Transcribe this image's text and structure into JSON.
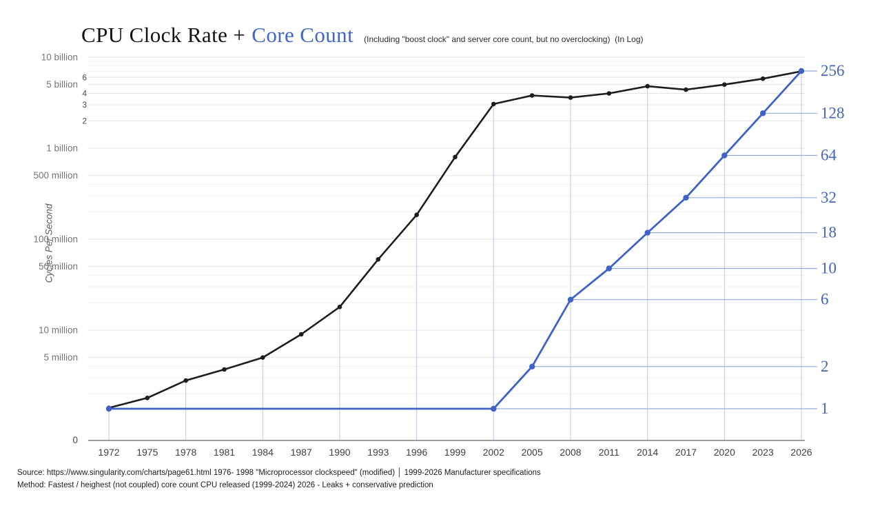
{
  "header": {
    "title_black": "CPU Clock Rate +",
    "title_blue": "Core Count",
    "subtitle": "(Including \"boost clock\" and server core count, but no overclocking)  (In Log)"
  },
  "footer": {
    "source_line": "Source: https://www.singularity.com/charts/page61.html 1976- 1998 \"Microprocessor clockspeed\" (modified) │ 1999-2026 Manufacturer specifications",
    "method_line": "Method: Fastest / heighest (not coupled) core count CPU released (1999-2024)  2026 - Leaks + conservative prediction"
  },
  "chart_data": {
    "type": "line",
    "title": "CPU Clock Rate + Core Count",
    "x_years": [
      1972,
      1975,
      1978,
      1981,
      1984,
      1987,
      1990,
      1993,
      1996,
      1999,
      2002,
      2005,
      2008,
      2011,
      2014,
      2017,
      2020,
      2023,
      2026
    ],
    "series": [
      {
        "name": "CPU Clock Rate",
        "axis": "left",
        "unit": "cycles per second (Hz)",
        "color": "#1d1d1d",
        "values": [
          1400000,
          1800000,
          2800000,
          3700000,
          5000000,
          9000000,
          18000000,
          60000000,
          185000000,
          800000000,
          3060000000,
          3800000000,
          3600000000,
          4000000000,
          4800000000,
          4400000000,
          5000000000,
          5800000000,
          7000000000
        ]
      },
      {
        "name": "Core Count",
        "axis": "right",
        "unit": "cores",
        "color": "#3e63c4",
        "values": [
          1,
          1,
          1,
          1,
          1,
          1,
          1,
          1,
          1,
          1,
          1,
          2,
          6,
          10,
          18,
          32,
          64,
          128,
          256
        ],
        "marker_years": [
          1972,
          2002,
          2005,
          2008,
          2011,
          2014,
          2017,
          2020,
          2023,
          2026
        ]
      }
    ],
    "left_axis": {
      "title": "Cycles Per Second",
      "scale": "log10",
      "zero_label": "0",
      "ticks": [
        {
          "label": "10 billion",
          "value": 10000000000
        },
        {
          "label": "5 billion",
          "value": 5000000000
        },
        {
          "label": "1 billion",
          "value": 1000000000
        },
        {
          "label": "500 million",
          "value": 500000000
        },
        {
          "label": "100 million",
          "value": 100000000
        },
        {
          "label": "50 million",
          "value": 50000000
        },
        {
          "label": "10 million",
          "value": 10000000
        },
        {
          "label": "5 million",
          "value": 5000000
        }
      ],
      "small_ticks": [
        {
          "label": "6",
          "value": 6000000000
        },
        {
          "label": "4",
          "value": 4000000000
        },
        {
          "label": "3",
          "value": 3000000000
        },
        {
          "label": "2",
          "value": 2000000000
        }
      ]
    },
    "right_axis": {
      "scale": "log2",
      "ticks": [
        {
          "label": "256",
          "value": 256,
          "year": 2026
        },
        {
          "label": "128",
          "value": 128,
          "year": 2023
        },
        {
          "label": "64",
          "value": 64,
          "year": 2020
        },
        {
          "label": "32",
          "value": 32,
          "year": 2017
        },
        {
          "label": "18",
          "value": 18,
          "year": 2014
        },
        {
          "label": "10",
          "value": 10,
          "year": 2011
        },
        {
          "label": "6",
          "value": 6,
          "year": 2008
        },
        {
          "label": "2",
          "value": 2,
          "year": 2005
        },
        {
          "label": "1",
          "value": 1,
          "year": 1972
        }
      ]
    },
    "dropline_years": [
      1972,
      1978,
      1984,
      1990,
      1996,
      2002,
      2008,
      2014,
      2020,
      2026
    ],
    "grid": {
      "major_values": [
        10000000000,
        6000000000,
        5000000000,
        4000000000,
        3000000000,
        2000000000,
        1000000000,
        500000000,
        100000000,
        50000000,
        10000000,
        5000000
      ],
      "minor_values": [
        9000000000,
        8000000000,
        7000000000,
        400000000,
        300000000,
        200000000,
        40000000,
        30000000,
        20000000,
        4000000,
        3000000,
        2000000
      ]
    },
    "colors": {
      "clock_line": "#1d1d1d",
      "core_line": "#3e63c4",
      "dropline": "#bcc9ee",
      "core_level_line": "#93a9de",
      "grid_major": "#e3e3e3",
      "grid_minor": "#f1f1f1",
      "axis_line": "#8f8f8f",
      "x_label": "#3f3f3f",
      "left_label": "#767676",
      "small_tick_label": "#4a4a4a",
      "right_label": "#4565b8"
    },
    "legend_position": "none"
  }
}
